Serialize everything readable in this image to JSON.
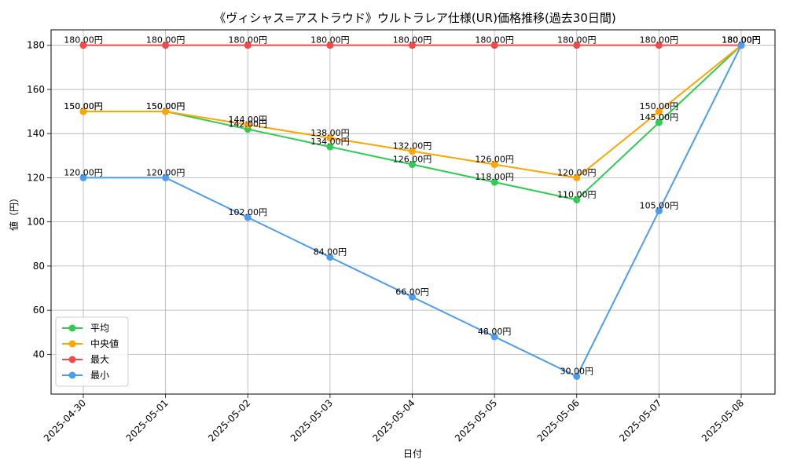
{
  "colors": {
    "平均": "#2ecc52",
    "中央値": "#ffa500",
    "最大": "#f44a4a",
    "最小": "#4c9cf0",
    "grid": "#b0b0b0"
  },
  "chart_data": {
    "type": "line",
    "title": "《ヴィシャス=アストラウド》ウルトラレア仕様(UR)価格推移(過去30日間)",
    "xlabel": "日付",
    "ylabel": "値（円）",
    "x": [
      "2025-04-30",
      "2025-05-01",
      "2025-05-02",
      "2025-05-03",
      "2025-05-04",
      "2025-05-05",
      "2025-05-06",
      "2025-05-07",
      "2025-05-08"
    ],
    "ylim": [
      22,
      187
    ],
    "yticks": [
      40,
      60,
      80,
      100,
      120,
      140,
      160,
      180
    ],
    "grid": true,
    "legend_position": "lower-left",
    "series": [
      {
        "name": "平均",
        "values": [
          150,
          150,
          142,
          134,
          126,
          118,
          110,
          145,
          180
        ],
        "labels": [
          "150.00円",
          "150.00円",
          "142.00円",
          "134.00円",
          "126.00円",
          "118.00円",
          "110.00円",
          "145.00円",
          "180.00円"
        ]
      },
      {
        "name": "中央値",
        "values": [
          150,
          150,
          144,
          138,
          132,
          126,
          120,
          150,
          180
        ],
        "labels": [
          "150.00円",
          "150.00円",
          "144.00円",
          "138.00円",
          "132.00円",
          "126.00円",
          "120.00円",
          "150.00円",
          "180.00円"
        ]
      },
      {
        "name": "最大",
        "values": [
          180,
          180,
          180,
          180,
          180,
          180,
          180,
          180,
          180
        ],
        "labels": [
          "180.00円",
          "180.00円",
          "180.00円",
          "180.00円",
          "180.00円",
          "180.00円",
          "180.00円",
          "180.00円",
          "180.00円"
        ]
      },
      {
        "name": "最小",
        "values": [
          120,
          120,
          102,
          84,
          66,
          48,
          30,
          105,
          180
        ],
        "labels": [
          "120.00円",
          "120.00円",
          "102.00円",
          "84.00円",
          "66.00円",
          "48.00円",
          "30.00円",
          "105.00円",
          "180.00円"
        ]
      }
    ]
  }
}
